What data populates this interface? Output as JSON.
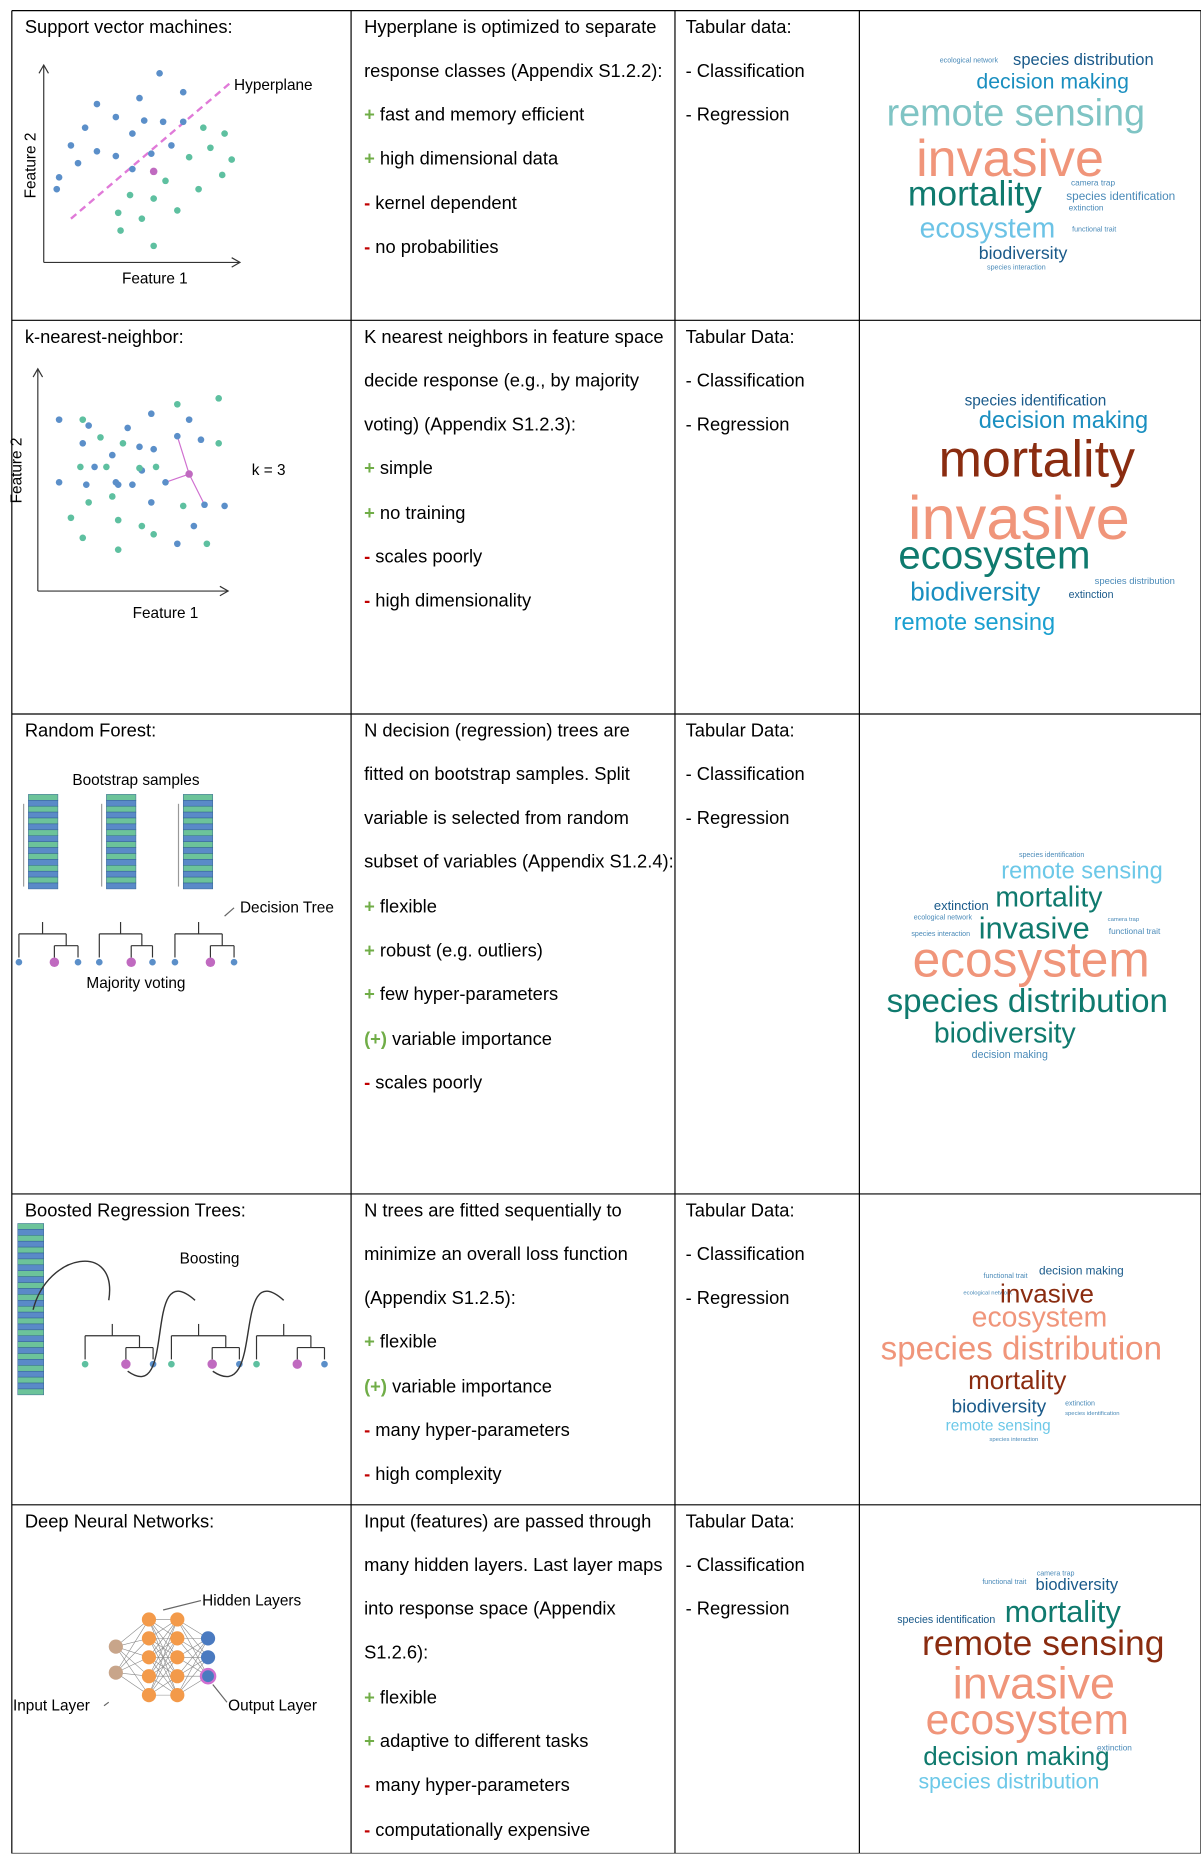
{
  "rows": [
    {
      "method": "Support vector machines:",
      "diagram_labels": [
        "Hyperplane",
        "Feature 2",
        "Feature 1"
      ],
      "description": "Hyperplane is optimized to separate response classes (Appendix S1.2.2):",
      "points": [
        {
          "sign": "+",
          "text": "fast and memory efficient"
        },
        {
          "sign": "+",
          "text": "high dimensional data"
        },
        {
          "sign": "-",
          "text": "kernel dependent"
        },
        {
          "sign": "-",
          "text": "no probabilities"
        }
      ],
      "data_types": [
        "Tabular data:",
        "- Classification",
        "- Regression"
      ],
      "wordcloud": [
        "ecological network",
        "species distribution",
        "decision making",
        "remote sensing",
        "invasive",
        "mortality",
        "camera trap",
        "species identification",
        "extinction",
        "ecosystem",
        "functional trait",
        "biodiversity",
        "species interaction"
      ]
    },
    {
      "method": "k-nearest-neighbor:",
      "diagram_labels": [
        "Feature 2",
        "Feature 1",
        "k = 3"
      ],
      "description": "K nearest neighbors in feature space decide response (e.g., by majority voting) (Appendix S1.2.3):",
      "points": [
        {
          "sign": "+",
          "text": "simple"
        },
        {
          "sign": "+",
          "text": "no training"
        },
        {
          "sign": "-",
          "text": "scales poorly"
        },
        {
          "sign": "-",
          "text": "high dimensionality"
        }
      ],
      "data_types": [
        "Tabular Data:",
        "- Classification",
        "- Regression"
      ],
      "wordcloud": [
        "species identification",
        "decision making",
        "mortality",
        "invasive",
        "ecosystem",
        "species distribution",
        "biodiversity",
        "extinction",
        "remote sensing"
      ]
    },
    {
      "method": "Random Forest:",
      "diagram_labels": [
        "Bootstrap samples",
        "Decision Tree",
        "Majority voting"
      ],
      "description": "N decision (regression) trees are fitted on bootstrap samples. Split variable is selected from random subset of variables (Appendix S1.2.4):",
      "points": [
        {
          "sign": "+",
          "text": "flexible"
        },
        {
          "sign": "+",
          "text": "robust (e.g. outliers)"
        },
        {
          "sign": "+",
          "text": "few hyper-parameters"
        },
        {
          "sign": "(+)",
          "text": "variable importance"
        },
        {
          "sign": "-",
          "text": "scales poorly"
        }
      ],
      "data_types": [
        "Tabular Data:",
        "- Classification",
        "- Regression"
      ],
      "wordcloud": [
        "species identification",
        "remote sensing",
        "extinction",
        "mortality",
        "ecological network",
        "camera trap",
        "invasive",
        "species interaction",
        "functional trait",
        "ecosystem",
        "species distribution",
        "biodiversity",
        "decision making"
      ]
    },
    {
      "method": "Boosted Regression Trees:",
      "diagram_labels": [
        "Boosting"
      ],
      "description": "N trees are fitted sequentially to minimize an overall loss function (Appendix S1.2.5):",
      "points": [
        {
          "sign": "+",
          "text": "flexible"
        },
        {
          "sign": "(+)",
          "text": "variable importance"
        },
        {
          "sign": "-",
          "text": "many hyper-parameters"
        },
        {
          "sign": "-",
          "text": "high complexity"
        }
      ],
      "data_types": [
        "Tabular Data:",
        "- Classification",
        "- Regression"
      ],
      "wordcloud": [
        "functional trait",
        "decision making",
        "ecological network",
        "invasive",
        "ecosystem",
        "species distribution",
        "mortality",
        "biodiversity",
        "extinction",
        "species identification",
        "remote sensing",
        "species interaction"
      ]
    },
    {
      "method": "Deep Neural Networks:",
      "diagram_labels": [
        "Hidden Layers",
        "Input Layer",
        "Output Layer"
      ],
      "description": "Input (features) are passed through many hidden layers. Last layer maps into response space (Appendix S1.2.6):",
      "points": [
        {
          "sign": "+",
          "text": "flexible"
        },
        {
          "sign": "+",
          "text": "adaptive to different tasks"
        },
        {
          "sign": "-",
          "text": "many hyper-parameters"
        },
        {
          "sign": "-",
          "text": "computationally expensive"
        }
      ],
      "data_types": [
        "Tabular Data:",
        "- Classification",
        "- Regression"
      ],
      "wordcloud": [
        "functional trait",
        "camera trap",
        "biodiversity",
        "species identification",
        "mortality",
        "remote sensing",
        "invasive",
        "ecosystem",
        "decision making",
        "extinction",
        "species distribution"
      ]
    }
  ]
}
